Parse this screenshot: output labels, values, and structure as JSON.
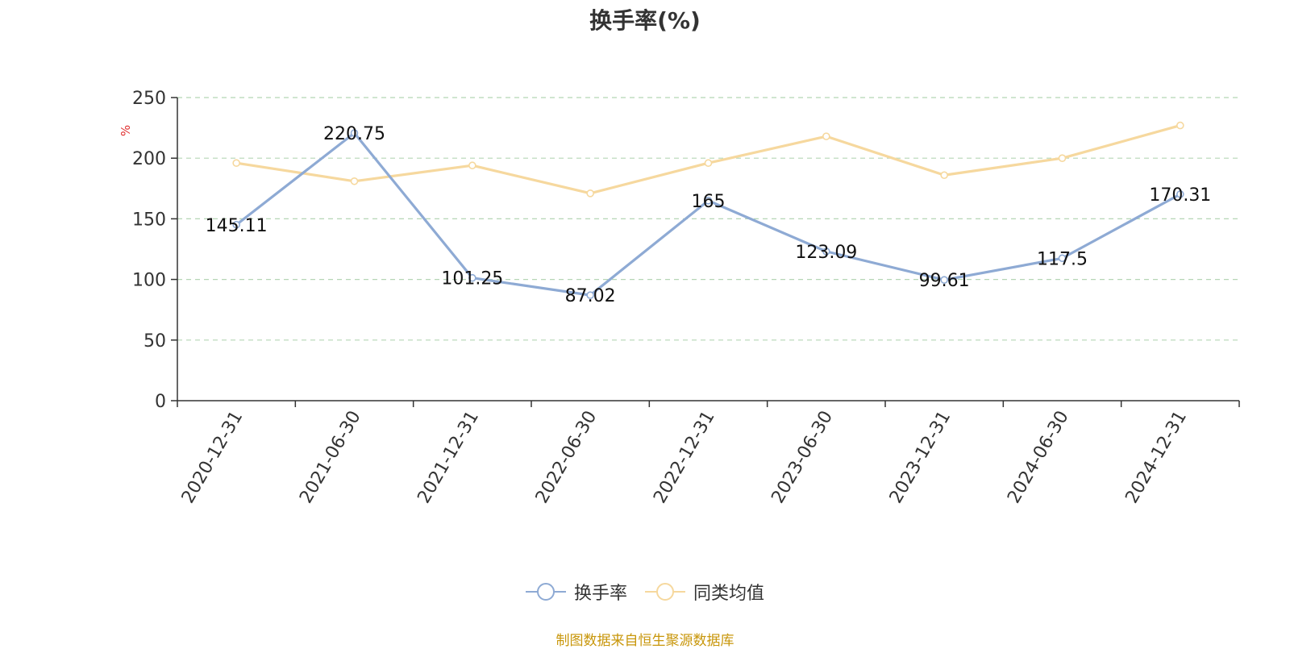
{
  "chart_data": {
    "type": "line",
    "title": "换手率(%)",
    "ylabel": "%",
    "xlabel": "",
    "ylim": [
      0,
      250
    ],
    "yticks": [
      0,
      50,
      100,
      150,
      200,
      250
    ],
    "grid": true,
    "categories": [
      "2020-12-31",
      "2021-06-30",
      "2021-12-31",
      "2022-06-30",
      "2022-12-31",
      "2023-06-30",
      "2023-12-31",
      "2024-06-30",
      "2024-12-31"
    ],
    "series": [
      {
        "name": "换手率",
        "color": "#8eaad4",
        "values": [
          145.11,
          220.75,
          101.25,
          87.02,
          165,
          123.09,
          99.61,
          117.5,
          170.31
        ],
        "labels": [
          "145.11",
          "220.75",
          "101.25",
          "87.02",
          "165",
          "123.09",
          "99.61",
          "117.5",
          "170.31"
        ]
      },
      {
        "name": "同类均值",
        "color": "#f6d89e",
        "values": [
          196,
          181,
          194,
          171,
          196,
          218,
          186,
          200,
          227
        ]
      }
    ],
    "legend_position": "bottom-center"
  },
  "source": "制图数据来自恒生聚源数据库",
  "colors": {
    "axis": "#333333",
    "grid": "#b5d6b5",
    "ylabel": "#e03030",
    "source": "#c8960a"
  }
}
